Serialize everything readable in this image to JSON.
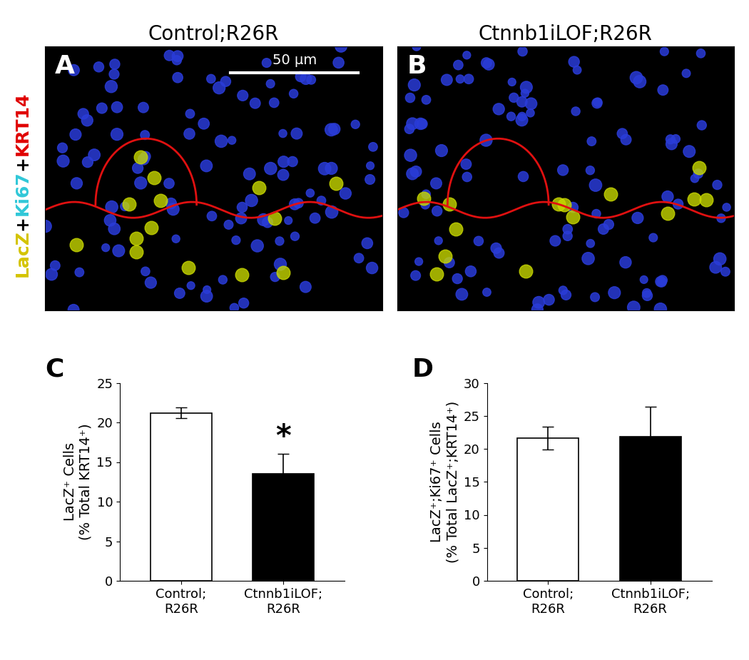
{
  "panels": [
    {
      "label": "A",
      "title": "Control;R26R",
      "scale_bar": "50 μm"
    },
    {
      "label": "B",
      "title": "Ctnnb1iLOF;R26R"
    }
  ],
  "stain_label": [
    {
      "text": "LacZ",
      "color": "#d4c400"
    },
    {
      "text": "+",
      "color": "#000000"
    },
    {
      "text": "Ki67",
      "color": "#30c8d8"
    },
    {
      "text": "+",
      "color": "#000000"
    },
    {
      "text": "KRT14",
      "color": "#e00000"
    }
  ],
  "chart_data": [
    {
      "label": "C",
      "type": "bar",
      "categories": [
        "Control;\nR26R",
        "Ctnnb1iLOF;\nR26R"
      ],
      "values": [
        21.2,
        13.5
      ],
      "errors": [
        0.7,
        2.5
      ],
      "colors": [
        "#ffffff",
        "#000000"
      ],
      "y_label": "LacZ⁺ Cells\n(% Total KRT14⁺)",
      "ylim": [
        0,
        25
      ],
      "yticks": [
        0,
        5,
        10,
        15,
        20,
        25
      ],
      "annotations": [
        {
          "text": "*",
          "category": "Ctnnb1iLOF;\nR26R"
        }
      ]
    },
    {
      "label": "D",
      "type": "bar",
      "categories": [
        "Control;\nR26R",
        "Ctnnb1iLOF;\nR26R"
      ],
      "values": [
        21.6,
        21.8
      ],
      "errors": [
        1.7,
        4.6
      ],
      "colors": [
        "#ffffff",
        "#000000"
      ],
      "y_label": "LacZ⁺;Ki67⁺ Cells\n(% Total LacZ⁺;KRT14⁺)",
      "ylim": [
        0,
        30
      ],
      "yticks": [
        0,
        5,
        10,
        15,
        20,
        25,
        30
      ]
    }
  ]
}
